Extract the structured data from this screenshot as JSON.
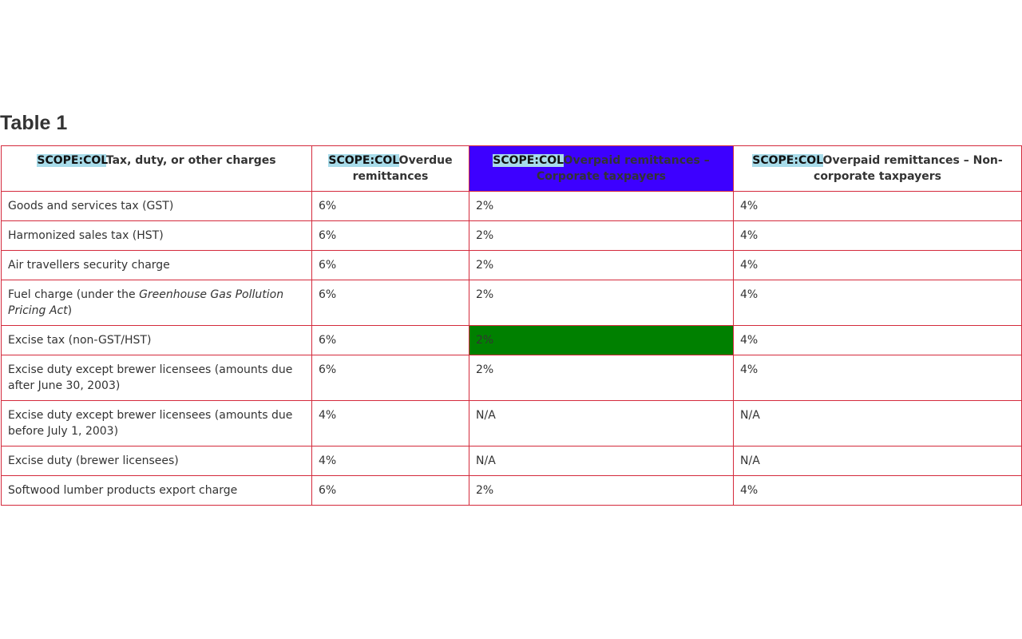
{
  "title": "Table 1",
  "scope_tag": "SCOPE:COL",
  "colors": {
    "border": "#d42a3c",
    "scope_highlight": "#a8dcea",
    "highlight_header": "#3d00ff",
    "highlight_cell": "#008000"
  },
  "headers": [
    "Tax, duty, or other charges",
    "Overdue remittances",
    "Overpaid remittances – Corporate taxpayers",
    "Overpaid remittances – Non-corporate taxpayers"
  ],
  "rows": [
    [
      "Goods and services tax (GST)",
      "6%",
      "2%",
      "4%"
    ],
    [
      "Harmonized sales tax (HST)",
      "6%",
      "2%",
      "4%"
    ],
    [
      "Air travellers security charge",
      "6%",
      "2%",
      "4%"
    ],
    [
      "Fuel charge (under the ",
      "6%",
      "2%",
      "4%"
    ],
    [
      "Excise tax (non-GST/HST)",
      "6%",
      "2%",
      "4%"
    ],
    [
      "Excise duty except brewer licensees (amounts due after June 30, 2003)",
      "6%",
      "2%",
      "4%"
    ],
    [
      "Excise duty except brewer licensees (amounts due before July 1, 2003)",
      "4%",
      "N/A",
      "N/A"
    ],
    [
      "Excise duty (brewer licensees)",
      "4%",
      "N/A",
      "N/A"
    ],
    [
      "Softwood lumber products export charge",
      "6%",
      "2%",
      "4%"
    ]
  ],
  "fuel_act": "Greenhouse Gas Pollution Pricing Act",
  "fuel_close": ")"
}
